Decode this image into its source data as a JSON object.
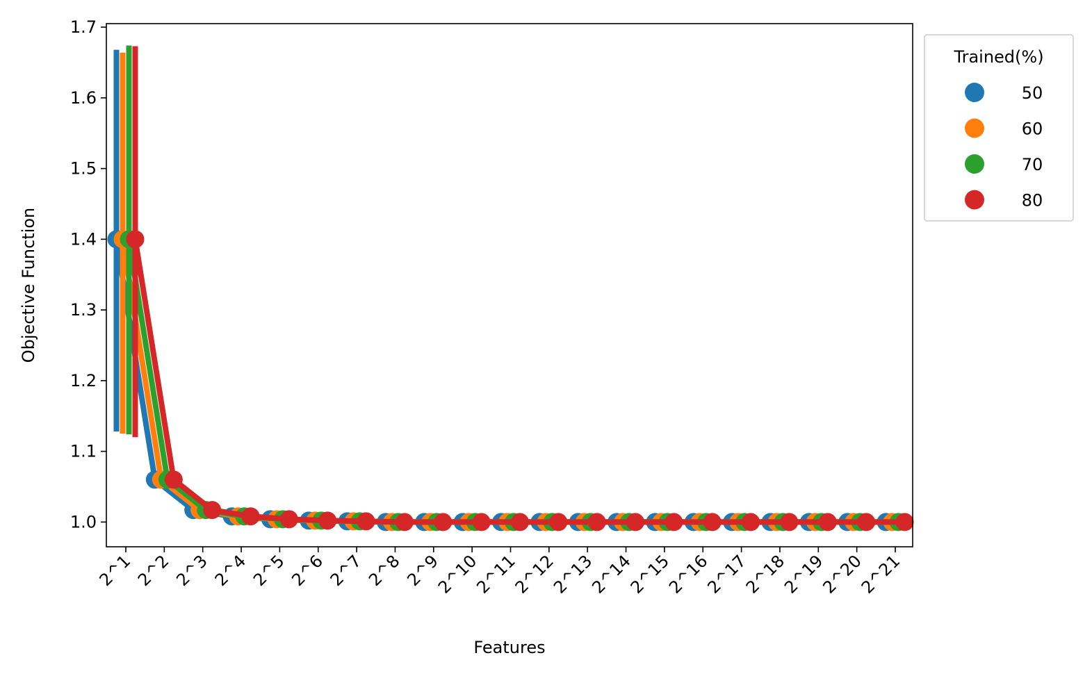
{
  "chart_data": {
    "type": "line",
    "title": "",
    "xlabel": "Features",
    "ylabel": "Objective Function",
    "categories": [
      "2^1",
      "2^2",
      "2^3",
      "2^4",
      "2^5",
      "2^6",
      "2^7",
      "2^8",
      "2^9",
      "2^10",
      "2^11",
      "2^12",
      "2^13",
      "2^14",
      "2^15",
      "2^16",
      "2^17",
      "2^18",
      "2^19",
      "2^20",
      "2^21"
    ],
    "ylim": [
      0.965,
      1.705
    ],
    "yticks": [
      "1.0",
      "1.1",
      "1.2",
      "1.3",
      "1.4",
      "1.5",
      "1.6",
      "1.7"
    ],
    "grid": false,
    "legend": {
      "title": "Trained(%)",
      "placement": "outside-top-right"
    },
    "series": [
      {
        "name": "50",
        "color": "#1f77b4",
        "values": [
          1.4,
          1.06,
          1.017,
          1.008,
          1.004,
          1.002,
          1.001,
          1.0,
          1.0,
          1.0,
          1.0,
          1.0,
          1.0,
          1.0,
          1.0,
          1.0,
          1.0,
          1.0,
          1.0,
          1.0,
          1.0
        ],
        "error": [
          1.128,
          1.668
        ]
      },
      {
        "name": "60",
        "color": "#ff7f0e",
        "values": [
          1.4,
          1.06,
          1.017,
          1.008,
          1.004,
          1.002,
          1.001,
          1.0,
          1.0,
          1.0,
          1.0,
          1.0,
          1.0,
          1.0,
          1.0,
          1.0,
          1.0,
          1.0,
          1.0,
          1.0,
          1.0
        ],
        "error": [
          1.125,
          1.664
        ]
      },
      {
        "name": "70",
        "color": "#2ca02c",
        "values": [
          1.4,
          1.06,
          1.017,
          1.008,
          1.004,
          1.002,
          1.001,
          1.0,
          1.0,
          1.0,
          1.0,
          1.0,
          1.0,
          1.0,
          1.0,
          1.0,
          1.0,
          1.0,
          1.0,
          1.0,
          1.0
        ],
        "error": [
          1.124,
          1.674
        ]
      },
      {
        "name": "80",
        "color": "#d62728",
        "values": [
          1.4,
          1.06,
          1.017,
          1.008,
          1.004,
          1.002,
          1.001,
          1.0,
          1.0,
          1.0,
          1.0,
          1.0,
          1.0,
          1.0,
          1.0,
          1.0,
          1.0,
          1.0,
          1.0,
          1.0,
          1.0
        ],
        "error": [
          1.12,
          1.673
        ]
      }
    ]
  }
}
